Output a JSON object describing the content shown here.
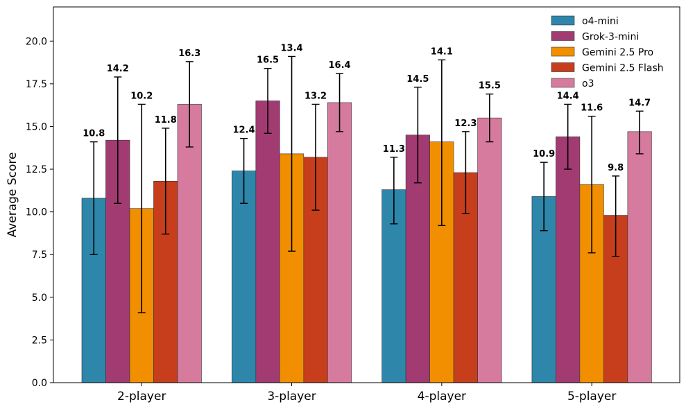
{
  "chart_data": {
    "type": "bar",
    "title": "",
    "xlabel": "",
    "ylabel": "Average Score",
    "ylim": [
      0,
      22
    ],
    "yticks": [
      "0.0",
      "2.5",
      "5.0",
      "7.5",
      "10.0",
      "12.5",
      "15.0",
      "17.5",
      "20.0"
    ],
    "grid": false,
    "legend_position": "top-right",
    "categories": [
      "2-player",
      "3-player",
      "4-player",
      "5-player"
    ],
    "series": [
      {
        "name": "o4-mini",
        "color": "#2e86ab",
        "values": [
          10.8,
          12.4,
          11.3,
          10.9
        ],
        "labels": [
          "10.8",
          "12.4",
          "11.3",
          "10.9"
        ],
        "err_low": [
          7.5,
          10.5,
          9.3,
          8.9
        ],
        "err_high": [
          14.1,
          14.3,
          13.2,
          12.9
        ]
      },
      {
        "name": "Grok-3-mini",
        "color": "#a23b72",
        "values": [
          14.2,
          16.5,
          14.5,
          14.4
        ],
        "labels": [
          "14.2",
          "16.5",
          "14.5",
          "14.4"
        ],
        "err_low": [
          10.5,
          14.6,
          11.7,
          12.5
        ],
        "err_high": [
          17.9,
          18.4,
          17.3,
          16.3
        ]
      },
      {
        "name": "Gemini 2.5 Pro",
        "color": "#f18f01",
        "values": [
          10.2,
          13.4,
          14.1,
          11.6
        ],
        "labels": [
          "10.2",
          "13.4",
          "14.1",
          "11.6"
        ],
        "err_low": [
          4.1,
          7.7,
          9.2,
          7.6
        ],
        "err_high": [
          16.3,
          19.1,
          18.9,
          15.6
        ]
      },
      {
        "name": "Gemini 2.5 Flash",
        "color": "#c73e1d",
        "values": [
          11.8,
          13.2,
          12.3,
          9.8
        ],
        "labels": [
          "11.8",
          "13.2",
          "12.3",
          "9.8"
        ],
        "err_low": [
          8.7,
          10.1,
          9.9,
          7.4
        ],
        "err_high": [
          14.9,
          16.3,
          14.7,
          12.1
        ]
      },
      {
        "name": "o3",
        "color": "#d67b9e",
        "values": [
          16.3,
          16.4,
          15.5,
          14.7
        ],
        "labels": [
          "16.3",
          "16.4",
          "15.5",
          "14.7"
        ],
        "err_low": [
          13.8,
          14.7,
          14.1,
          13.4
        ],
        "err_high": [
          18.8,
          18.1,
          16.9,
          15.9
        ]
      }
    ]
  }
}
